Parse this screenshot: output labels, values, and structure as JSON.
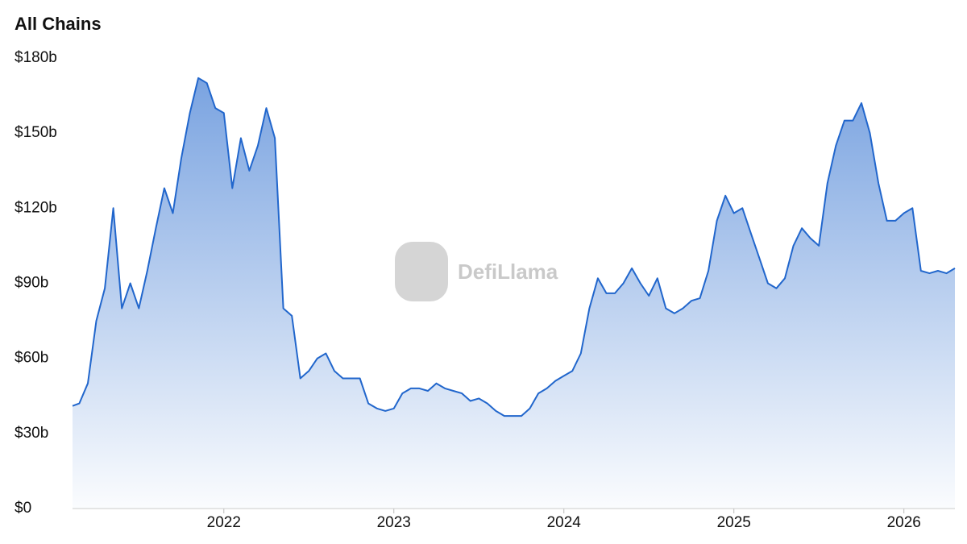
{
  "chart_data": {
    "type": "area",
    "title": "All Chains",
    "watermark": "DefiLlama",
    "x": [
      2021.11,
      2021.15,
      2021.2,
      2021.25,
      2021.3,
      2021.35,
      2021.4,
      2021.45,
      2021.5,
      2021.55,
      2021.6,
      2021.65,
      2021.7,
      2021.75,
      2021.8,
      2021.85,
      2021.9,
      2021.95,
      2022.0,
      2022.05,
      2022.1,
      2022.15,
      2022.2,
      2022.25,
      2022.3,
      2022.35,
      2022.4,
      2022.45,
      2022.5,
      2022.55,
      2022.6,
      2022.65,
      2022.7,
      2022.75,
      2022.8,
      2022.85,
      2022.9,
      2022.95,
      2023.0,
      2023.05,
      2023.1,
      2023.15,
      2023.2,
      2023.25,
      2023.3,
      2023.35,
      2023.4,
      2023.45,
      2023.5,
      2023.55,
      2023.6,
      2023.65,
      2023.7,
      2023.75,
      2023.8,
      2023.85,
      2023.9,
      2023.95,
      2024.0,
      2024.05,
      2024.1,
      2024.15,
      2024.2,
      2024.25,
      2024.3,
      2024.35,
      2024.4,
      2024.45,
      2024.5,
      2024.55,
      2024.6,
      2024.65,
      2024.7,
      2024.75,
      2024.8,
      2024.85,
      2024.9,
      2024.95,
      2025.0,
      2025.05,
      2025.1,
      2025.15,
      2025.2,
      2025.25,
      2025.3,
      2025.35,
      2025.4,
      2025.45,
      2025.5,
      2025.55,
      2025.6,
      2025.65,
      2025.7,
      2025.75,
      2025.8,
      2025.85,
      2025.9,
      2025.95,
      2026.0,
      2026.05,
      2026.1,
      2026.15,
      2026.2,
      2026.25,
      2026.3
    ],
    "values": [
      41,
      42,
      50,
      75,
      88,
      120,
      80,
      90,
      80,
      95,
      112,
      128,
      118,
      140,
      158,
      172,
      170,
      160,
      158,
      128,
      148,
      135,
      145,
      160,
      148,
      80,
      77,
      52,
      55,
      60,
      62,
      55,
      52,
      52,
      52,
      42,
      40,
      39,
      40,
      46,
      48,
      48,
      47,
      50,
      48,
      47,
      46,
      43,
      44,
      42,
      39,
      37,
      37,
      37,
      40,
      46,
      48,
      51,
      53,
      55,
      62,
      80,
      92,
      86,
      86,
      90,
      96,
      90,
      85,
      92,
      80,
      78,
      80,
      83,
      84,
      95,
      115,
      125,
      118,
      120,
      110,
      100,
      90,
      88,
      92,
      105,
      112,
      108,
      105,
      130,
      145,
      155,
      155,
      162,
      150,
      130,
      115,
      115,
      118,
      120,
      95,
      94,
      95,
      94,
      96
    ],
    "color": "#2166cc",
    "xlim": [
      2021.11,
      2026.3
    ],
    "xticks": [
      2022,
      2023,
      2024,
      2025,
      2026
    ],
    "ylim": [
      0,
      180
    ],
    "yticks": [
      {
        "value": 0,
        "label": "$0"
      },
      {
        "value": 30,
        "label": "$30b"
      },
      {
        "value": 60,
        "label": "$60b"
      },
      {
        "value": 90,
        "label": "$90b"
      },
      {
        "value": 120,
        "label": "$120b"
      },
      {
        "value": 150,
        "label": "$150b"
      },
      {
        "value": 180,
        "label": "$180b"
      }
    ]
  }
}
